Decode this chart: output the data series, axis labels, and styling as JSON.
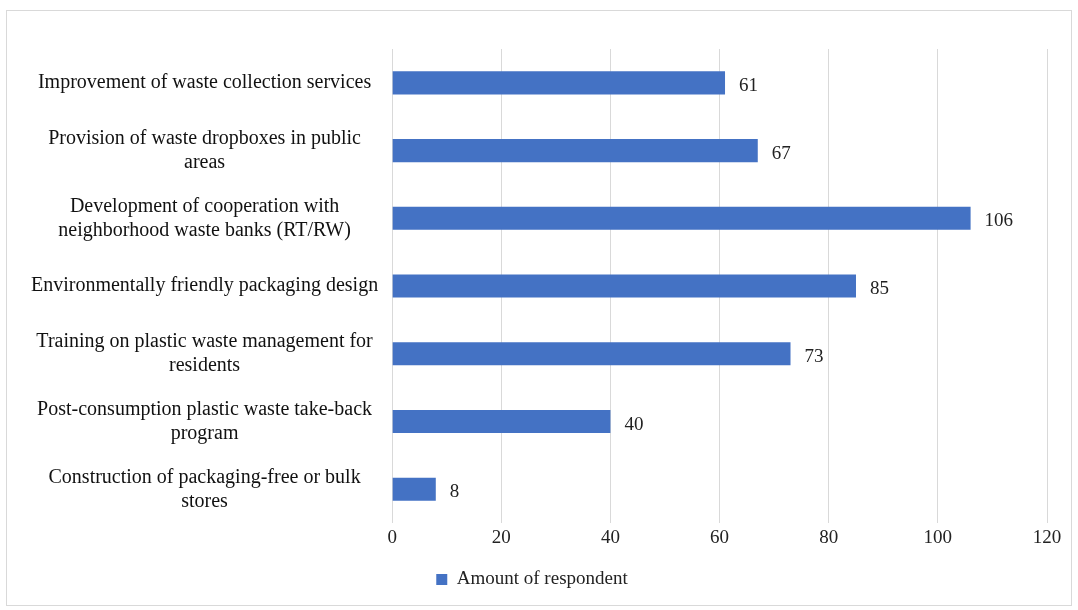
{
  "chart_data": {
    "type": "bar",
    "orientation": "horizontal",
    "categories": [
      "Improvement of waste collection services",
      "Provision of waste dropboxes in public areas",
      "Development of cooperation with neighborhood waste banks (RT/RW)",
      "Environmentally friendly packaging design",
      "Training on plastic waste management for residents",
      "Post-consumption plastic waste take-back program",
      "Construction of packaging-free or bulk stores"
    ],
    "series": [
      {
        "name": "Amount of respondent",
        "color": "#4472c4",
        "values": [
          61,
          67,
          106,
          85,
          73,
          40,
          8
        ]
      }
    ],
    "xlim": [
      0,
      120
    ],
    "xticks": [
      0,
      20,
      40,
      60,
      80,
      100,
      120
    ],
    "grid": "x",
    "legend": "bottom",
    "data_labels": true
  }
}
